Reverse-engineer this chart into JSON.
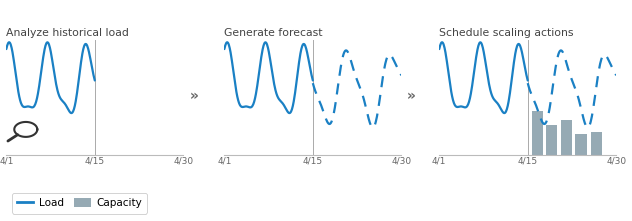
{
  "title1": "Analyze historical load",
  "title2": "Generate forecast",
  "title3": "Schedule scaling actions",
  "arrow_symbol": "»",
  "x_ticks": [
    "4/1",
    "4/15",
    "4/30"
  ],
  "line_color": "#1a80c4",
  "dashed_color": "#1a80c4",
  "bar_color": "#96aab4",
  "axis_color": "#bbbbbb",
  "text_color": "#666666",
  "title_color": "#444444",
  "bg_color": "#ffffff",
  "legend_load_label": "Load",
  "legend_capacity_label": "Capacity"
}
